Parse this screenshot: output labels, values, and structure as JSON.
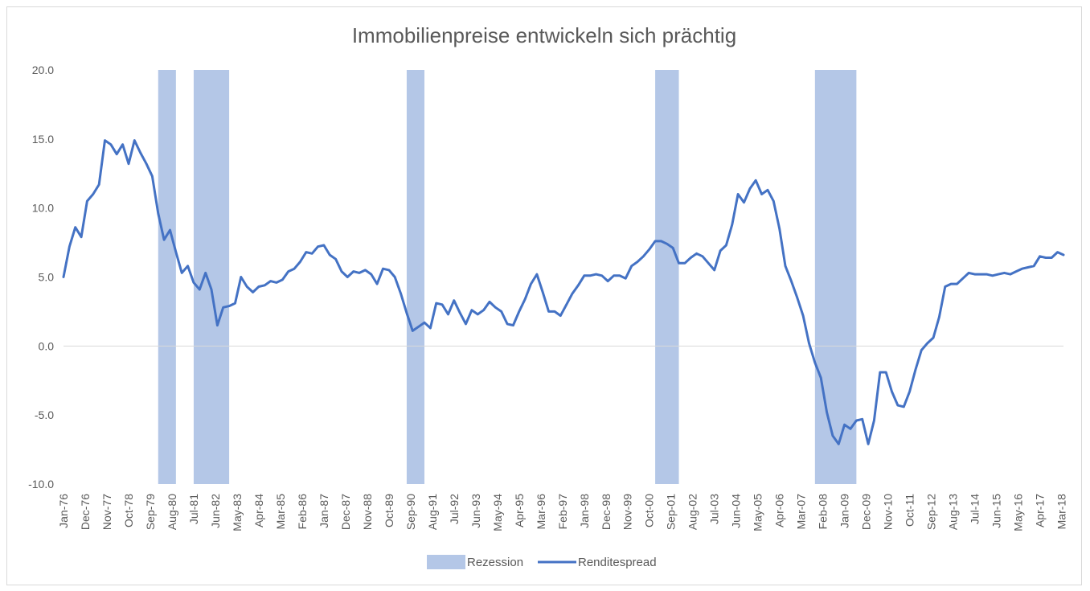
{
  "chart_data": {
    "type": "line",
    "title": "Immobilienpreise entwickeln sich prächtig",
    "xlabel": "",
    "ylabel": "",
    "ylim": [
      -10,
      20
    ],
    "yticks": [
      "20.0",
      "15.0",
      "10.0",
      "5.0",
      "0.0",
      "-5.0",
      "-10.0"
    ],
    "x_tick_labels": [
      "Jan-76",
      "Dec-76",
      "Nov-77",
      "Oct-78",
      "Sep-79",
      "Aug-80",
      "Jul-81",
      "Jun-82",
      "May-83",
      "Apr-84",
      "Mar-85",
      "Feb-86",
      "Jan-87",
      "Dec-87",
      "Nov-88",
      "Oct-89",
      "Sep-90",
      "Aug-91",
      "Jul-92",
      "Jun-93",
      "May-94",
      "Apr-95",
      "Mar-96",
      "Feb-97",
      "Jan-98",
      "Dec-98",
      "Nov-99",
      "Oct-00",
      "Sep-01",
      "Aug-02",
      "Jul-03",
      "Jun-04",
      "May-05",
      "Apr-06",
      "Mar-07",
      "Feb-08",
      "Jan-09",
      "Dec-09",
      "Nov-10",
      "Oct-11",
      "Sep-12",
      "Aug-13",
      "Jul-14",
      "Jun-15",
      "May-16",
      "Apr-17",
      "Mar-18"
    ],
    "grid": "zero line only",
    "legend": "bottom",
    "legend_labels": [
      "Rezession",
      "Renditespread"
    ],
    "series": [
      {
        "name": "Renditespread",
        "color": "#4472c4",
        "x": [
          1976.0,
          1976.25,
          1976.5,
          1976.75,
          1977.0,
          1977.25,
          1977.5,
          1977.75,
          1978.0,
          1978.25,
          1978.5,
          1978.75,
          1979.0,
          1979.25,
          1979.5,
          1979.75,
          1980.0,
          1980.25,
          1980.5,
          1980.75,
          1981.0,
          1981.25,
          1981.5,
          1981.75,
          1982.0,
          1982.25,
          1982.5,
          1982.75,
          1983.0,
          1983.25,
          1983.5,
          1983.75,
          1984.0,
          1984.25,
          1984.5,
          1984.75,
          1985.0,
          1985.25,
          1985.5,
          1985.75,
          1986.0,
          1986.25,
          1986.5,
          1986.75,
          1987.0,
          1987.25,
          1987.5,
          1987.75,
          1988.0,
          1988.25,
          1988.5,
          1988.75,
          1989.0,
          1989.25,
          1989.5,
          1989.75,
          1990.0,
          1990.25,
          1990.5,
          1990.75,
          1991.0,
          1991.25,
          1991.5,
          1991.75,
          1992.0,
          1992.25,
          1992.5,
          1992.75,
          1993.0,
          1993.25,
          1993.5,
          1993.75,
          1994.0,
          1994.25,
          1994.5,
          1994.75,
          1995.0,
          1995.25,
          1995.5,
          1995.75,
          1996.0,
          1996.25,
          1996.5,
          1996.75,
          1997.0,
          1997.25,
          1997.5,
          1997.75,
          1998.0,
          1998.25,
          1998.5,
          1998.75,
          1999.0,
          1999.25,
          1999.5,
          1999.75,
          2000.0,
          2000.25,
          2000.5,
          2000.75,
          2001.0,
          2001.25,
          2001.5,
          2001.75,
          2002.0,
          2002.25,
          2002.5,
          2002.75,
          2003.0,
          2003.25,
          2003.5,
          2003.75,
          2004.0,
          2004.25,
          2004.5,
          2004.75,
          2005.0,
          2005.25,
          2005.5,
          2005.75,
          2006.0,
          2006.25,
          2006.5,
          2006.75,
          2007.0,
          2007.25,
          2007.5,
          2007.75,
          2008.0,
          2008.25,
          2008.5,
          2008.75,
          2009.0,
          2009.25,
          2009.5,
          2009.75,
          2010.0,
          2010.25,
          2010.5,
          2010.75,
          2011.0,
          2011.25,
          2011.5,
          2011.75,
          2012.0,
          2012.25,
          2012.5,
          2012.75,
          2013.0,
          2013.25,
          2013.5,
          2013.75,
          2014.0,
          2014.25,
          2014.5,
          2014.75,
          2015.0,
          2015.25,
          2015.5,
          2015.75,
          2016.0,
          2016.25,
          2016.5,
          2016.75,
          2017.0,
          2017.25,
          2017.5,
          2017.75,
          2018.0,
          2018.25
        ],
        "values": [
          5.0,
          7.2,
          8.6,
          7.9,
          10.5,
          11.0,
          11.7,
          14.9,
          14.6,
          13.9,
          14.6,
          13.2,
          14.9,
          14.0,
          13.2,
          12.3,
          9.6,
          7.7,
          8.4,
          6.8,
          5.3,
          5.8,
          4.6,
          4.1,
          5.3,
          4.1,
          1.5,
          2.8,
          2.9,
          3.1,
          5.0,
          4.3,
          3.9,
          4.3,
          4.4,
          4.7,
          4.6,
          4.8,
          5.4,
          5.6,
          6.1,
          6.8,
          6.7,
          7.2,
          7.3,
          6.6,
          6.3,
          5.4,
          5.0,
          5.4,
          5.3,
          5.5,
          5.2,
          4.5,
          5.6,
          5.5,
          5.0,
          3.8,
          2.4,
          1.1,
          1.4,
          1.7,
          1.3,
          3.1,
          3.0,
          2.3,
          3.3,
          2.4,
          1.6,
          2.6,
          2.3,
          2.6,
          3.2,
          2.8,
          2.5,
          1.6,
          1.5,
          2.5,
          3.4,
          4.5,
          5.2,
          3.9,
          2.5,
          2.5,
          2.2,
          3.0,
          3.8,
          4.4,
          5.1,
          5.1,
          5.2,
          5.1,
          4.7,
          5.1,
          5.1,
          4.9,
          5.8,
          6.1,
          6.5,
          7.0,
          7.6,
          7.6,
          7.4,
          7.1,
          6.0,
          6.0,
          6.4,
          6.7,
          6.5,
          6.0,
          5.5,
          6.9,
          7.3,
          8.8,
          11.0,
          10.4,
          11.4,
          12.0,
          11.0,
          11.3,
          10.5,
          8.5,
          5.8,
          4.7,
          3.5,
          2.2,
          0.2,
          -1.2,
          -2.3,
          -4.8,
          -6.5,
          -7.1,
          -5.7,
          -6.0,
          -5.4,
          -5.3,
          -7.1,
          -5.4,
          -1.9,
          -1.9,
          -3.3,
          -4.3,
          -4.4,
          -3.3,
          -1.7,
          -0.3,
          0.2,
          0.6,
          2.1,
          4.3,
          4.5,
          4.5,
          4.9,
          5.3,
          5.2,
          5.2,
          5.2,
          5.1,
          5.2,
          5.3,
          5.2,
          5.4,
          5.6,
          5.7,
          5.8,
          6.5,
          6.4,
          6.4,
          6.8,
          6.6
        ]
      },
      {
        "name": "Rezession",
        "color": "#b4c7e7",
        "periods": [
          [
            1980.0,
            1980.75
          ],
          [
            1981.5,
            1983.0
          ],
          [
            1990.5,
            1991.25
          ],
          [
            2001.0,
            2002.0
          ],
          [
            2007.75,
            2009.5
          ]
        ]
      }
    ]
  }
}
